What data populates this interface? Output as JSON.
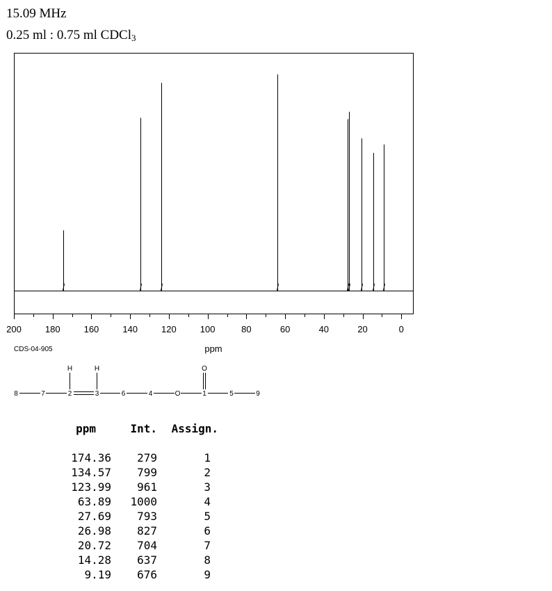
{
  "header": {
    "frequency": "15.09 MHz",
    "solvent_main": "0.25 ml : 0.75 ml CDCl",
    "solvent_sub": "3"
  },
  "chart_data": {
    "type": "line",
    "xlabel": "ppm",
    "xlim": [
      200,
      -6
    ],
    "x_ticks": [
      200,
      180,
      160,
      140,
      120,
      100,
      80,
      60,
      40,
      20,
      0
    ],
    "x_ticks_labels": [
      "200",
      "180",
      "160",
      "140",
      "120",
      "100",
      "80",
      "60",
      "40",
      "20",
      "0"
    ],
    "ylim": [
      0,
      1000
    ],
    "peaks": [
      {
        "ppm": 174.36,
        "intensity": 279
      },
      {
        "ppm": 134.57,
        "intensity": 799
      },
      {
        "ppm": 123.99,
        "intensity": 961
      },
      {
        "ppm": 63.89,
        "intensity": 1000
      },
      {
        "ppm": 27.69,
        "intensity": 793
      },
      {
        "ppm": 26.98,
        "intensity": 827
      },
      {
        "ppm": 20.72,
        "intensity": 704
      },
      {
        "ppm": 14.28,
        "intensity": 637
      },
      {
        "ppm": 9.19,
        "intensity": 676
      }
    ]
  },
  "code": "CDS-04-905",
  "structure": {
    "atoms_main": [
      "8",
      "7",
      "2",
      "3",
      "6",
      "4",
      "O",
      "1",
      "5",
      "9"
    ],
    "atom_h2": "H",
    "atom_h3": "H",
    "atom_o": "O"
  },
  "table": {
    "headers": [
      "ppm",
      "Int.",
      "Assign."
    ],
    "rows": [
      [
        "174.36",
        "279",
        "1"
      ],
      [
        "134.57",
        "799",
        "2"
      ],
      [
        "123.99",
        "961",
        "3"
      ],
      [
        "63.89",
        "1000",
        "4"
      ],
      [
        "27.69",
        "793",
        "5"
      ],
      [
        "26.98",
        "827",
        "6"
      ],
      [
        "20.72",
        "704",
        "7"
      ],
      [
        "14.28",
        "637",
        "8"
      ],
      [
        "9.19",
        "676",
        "9"
      ]
    ]
  }
}
